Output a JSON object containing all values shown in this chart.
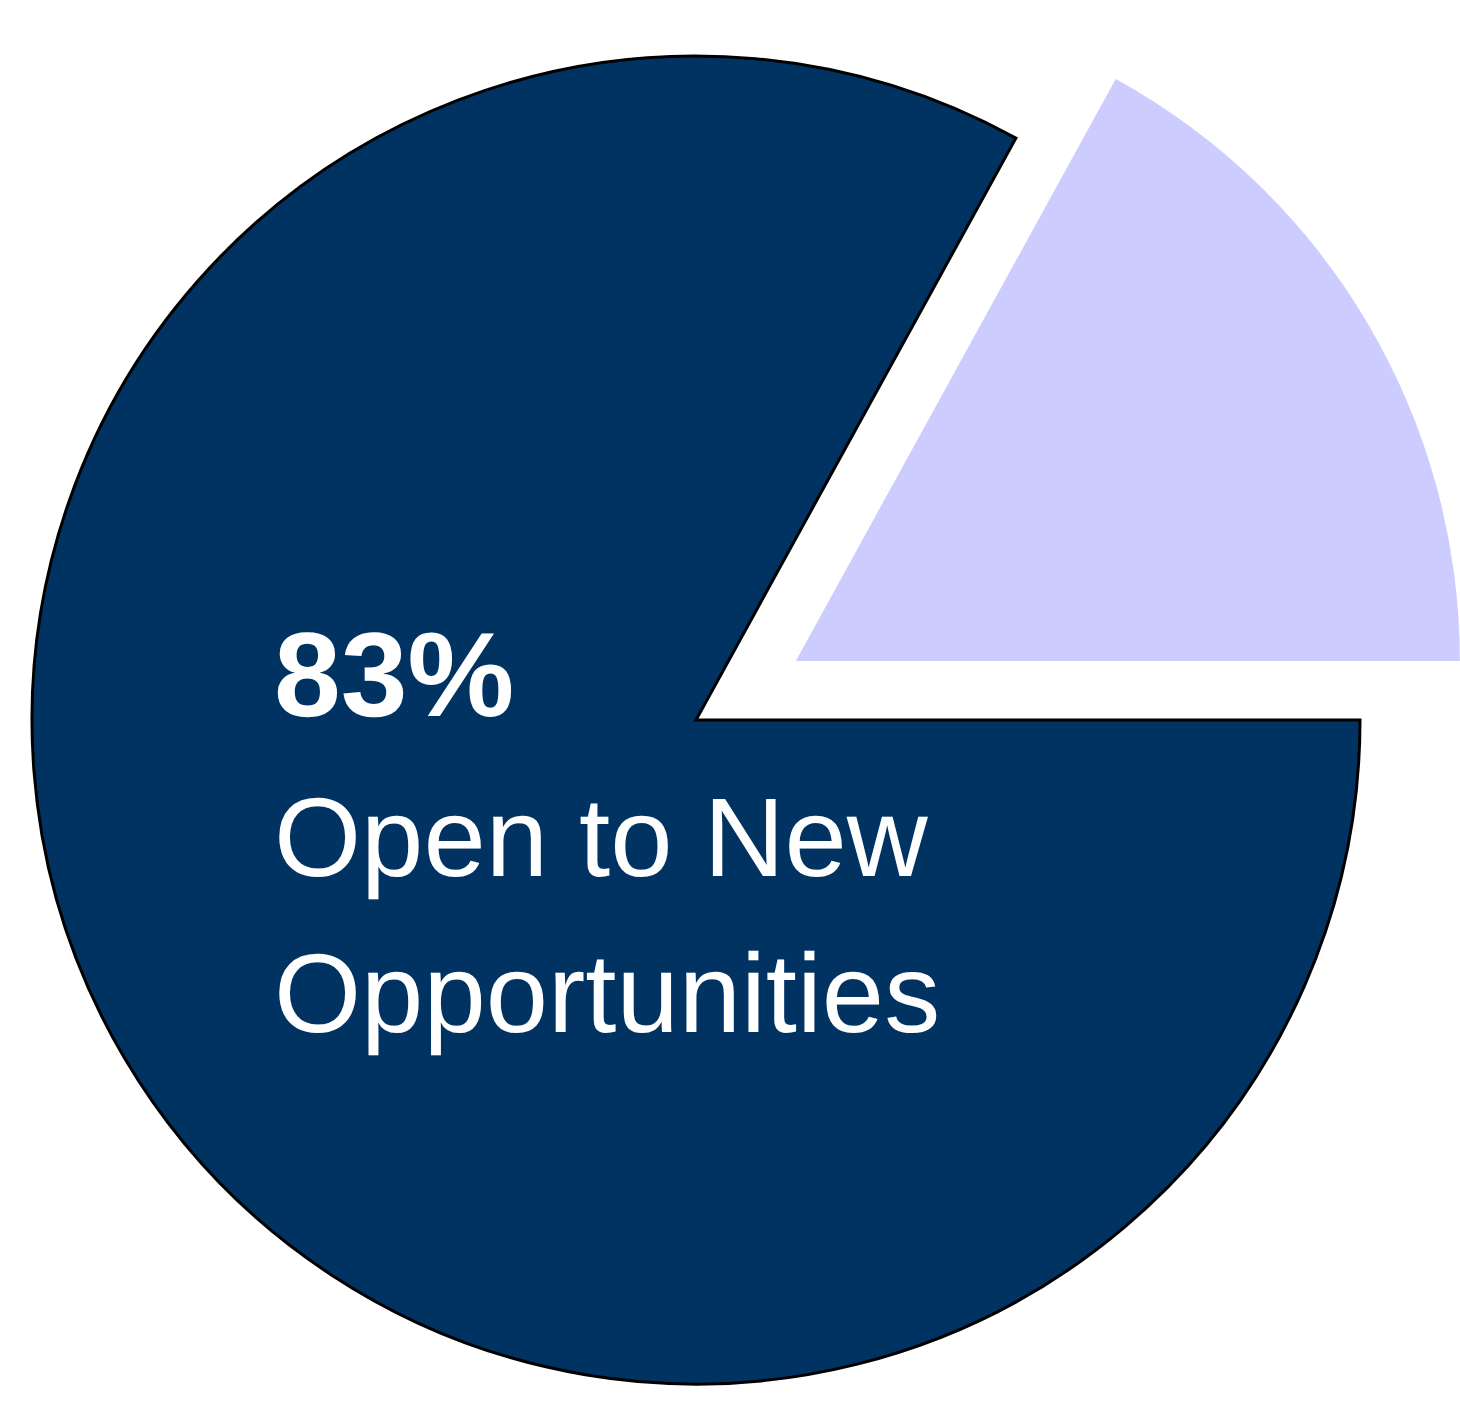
{
  "chart_data": {
    "type": "pie",
    "categories": [
      "Open to New Opportunities",
      null
    ],
    "values": [
      83,
      17
    ],
    "colors": [
      "#003262",
      "#ccccff"
    ],
    "value_labels": [
      "83%",
      null
    ]
  }
}
